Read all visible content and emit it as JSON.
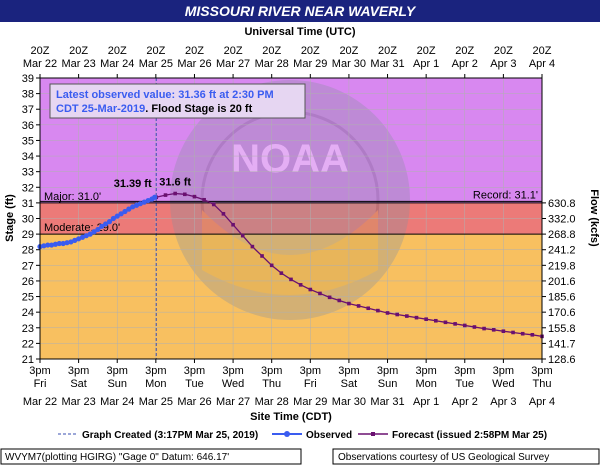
{
  "header": {
    "title": "MISSOURI RIVER NEAR WAVERLY",
    "top_axis_title": "Universal Time (UTC)"
  },
  "chart_data": {
    "type": "line",
    "title": "MISSOURI RIVER NEAR WAVERLY",
    "ylabel_left": "Stage (ft)",
    "ylabel_right": "Flow (kcfs)",
    "xlabel_bottom": "Site Time (CDT)",
    "xlabel_top": "Universal Time (UTC)",
    "ylim": [
      21,
      39
    ],
    "yticks": [
      21,
      22,
      23,
      24,
      25,
      26,
      27,
      28,
      29,
      30,
      31,
      32,
      33,
      34,
      35,
      36,
      37,
      38,
      39
    ],
    "x_unit": "days after 3pm Mar 22 (CDT)",
    "xlim": [
      0,
      13
    ],
    "bottom_ticks": [
      {
        "time": "3pm",
        "day": "Fri",
        "date": "Mar 22"
      },
      {
        "time": "3pm",
        "day": "Sat",
        "date": "Mar 23"
      },
      {
        "time": "3pm",
        "day": "Sun",
        "date": "Mar 24"
      },
      {
        "time": "3pm",
        "day": "Mon",
        "date": "Mar 25"
      },
      {
        "time": "3pm",
        "day": "Tue",
        "date": "Mar 26"
      },
      {
        "time": "3pm",
        "day": "Wed",
        "date": "Mar 27"
      },
      {
        "time": "3pm",
        "day": "Thu",
        "date": "Mar 28"
      },
      {
        "time": "3pm",
        "day": "Fri",
        "date": "Mar 29"
      },
      {
        "time": "3pm",
        "day": "Sat",
        "date": "Mar 30"
      },
      {
        "time": "3pm",
        "day": "Sun",
        "date": "Mar 31"
      },
      {
        "time": "3pm",
        "day": "Mon",
        "date": "Apr 1"
      },
      {
        "time": "3pm",
        "day": "Tue",
        "date": "Apr 2"
      },
      {
        "time": "3pm",
        "day": "Wed",
        "date": "Apr 3"
      },
      {
        "time": "3pm",
        "day": "Thu",
        "date": "Apr 4"
      }
    ],
    "top_ticks": [
      {
        "time": "20Z",
        "date": "Mar 22"
      },
      {
        "time": "20Z",
        "date": "Mar 23"
      },
      {
        "time": "20Z",
        "date": "Mar 24"
      },
      {
        "time": "20Z",
        "date": "Mar 25"
      },
      {
        "time": "20Z",
        "date": "Mar 26"
      },
      {
        "time": "20Z",
        "date": "Mar 27"
      },
      {
        "time": "20Z",
        "date": "Mar 28"
      },
      {
        "time": "20Z",
        "date": "Mar 29"
      },
      {
        "time": "20Z",
        "date": "Mar 30"
      },
      {
        "time": "20Z",
        "date": "Mar 31"
      },
      {
        "time": "20Z",
        "date": "Apr 1"
      },
      {
        "time": "20Z",
        "date": "Apr 2"
      },
      {
        "time": "20Z",
        "date": "Apr 3"
      },
      {
        "time": "20Z",
        "date": "Apr 4"
      }
    ],
    "flow_ticks": [
      {
        "stage": 31,
        "label": "630.8"
      },
      {
        "stage": 30,
        "label": "332.0"
      },
      {
        "stage": 29,
        "label": "268.8"
      },
      {
        "stage": 28,
        "label": "241.2"
      },
      {
        "stage": 27,
        "label": "219.8"
      },
      {
        "stage": 26,
        "label": "201.6"
      },
      {
        "stage": 25,
        "label": "185.6"
      },
      {
        "stage": 24,
        "label": "170.6"
      },
      {
        "stage": 23,
        "label": "155.8"
      },
      {
        "stage": 22,
        "label": "141.7"
      },
      {
        "stage": 21,
        "label": "128.6"
      }
    ],
    "bands": [
      {
        "name": "major",
        "from": 31,
        "to": 39,
        "color": "#d888f0"
      },
      {
        "name": "flood",
        "from": 29,
        "to": 31,
        "color": "#ec7a78"
      },
      {
        "name": "normal",
        "from": 21,
        "to": 29,
        "color": "#f8c060"
      }
    ],
    "thresholds": [
      {
        "label": "Major: 31.0'",
        "value": 31.0,
        "side": "left"
      },
      {
        "label": "Moderate: 29.0'",
        "value": 29.0,
        "side": "left"
      },
      {
        "label": "Record: 31.1'",
        "value": 31.1,
        "side": "right"
      }
    ],
    "graph_created_x": 3.01,
    "series": [
      {
        "name": "Observed",
        "color": "#3a5cf0",
        "points": [
          [
            0.0,
            28.2
          ],
          [
            0.1,
            28.25
          ],
          [
            0.2,
            28.3
          ],
          [
            0.3,
            28.3
          ],
          [
            0.4,
            28.35
          ],
          [
            0.5,
            28.4
          ],
          [
            0.6,
            28.4
          ],
          [
            0.7,
            28.45
          ],
          [
            0.8,
            28.5
          ],
          [
            0.9,
            28.6
          ],
          [
            1.0,
            28.7
          ],
          [
            1.1,
            28.8
          ],
          [
            1.2,
            28.9
          ],
          [
            1.3,
            29.0
          ],
          [
            1.4,
            29.15
          ],
          [
            1.5,
            29.3
          ],
          [
            1.6,
            29.5
          ],
          [
            1.7,
            29.65
          ],
          [
            1.8,
            29.8
          ],
          [
            1.9,
            30.0
          ],
          [
            2.0,
            30.15
          ],
          [
            2.1,
            30.3
          ],
          [
            2.2,
            30.45
          ],
          [
            2.3,
            30.6
          ],
          [
            2.4,
            30.75
          ],
          [
            2.5,
            30.85
          ],
          [
            2.6,
            30.95
          ],
          [
            2.7,
            31.05
          ],
          [
            2.8,
            31.15
          ],
          [
            2.9,
            31.25
          ],
          [
            2.97,
            31.36
          ]
        ],
        "peak_label": "31.39 ft"
      },
      {
        "name": "Forecast (issued 2:58PM Mar 25)",
        "color": "#6a1070",
        "points": [
          [
            3.01,
            31.36
          ],
          [
            3.25,
            31.5
          ],
          [
            3.5,
            31.6
          ],
          [
            3.75,
            31.55
          ],
          [
            4.0,
            31.4
          ],
          [
            4.25,
            31.2
          ],
          [
            4.5,
            30.9
          ],
          [
            4.75,
            30.3
          ],
          [
            5.0,
            29.6
          ],
          [
            5.25,
            28.9
          ],
          [
            5.5,
            28.2
          ],
          [
            5.75,
            27.6
          ],
          [
            6.0,
            27.0
          ],
          [
            6.25,
            26.5
          ],
          [
            6.5,
            26.1
          ],
          [
            6.75,
            25.75
          ],
          [
            7.0,
            25.45
          ],
          [
            7.25,
            25.2
          ],
          [
            7.5,
            24.95
          ],
          [
            7.75,
            24.75
          ],
          [
            8.0,
            24.55
          ],
          [
            8.25,
            24.4
          ],
          [
            8.5,
            24.25
          ],
          [
            8.75,
            24.1
          ],
          [
            9.0,
            23.95
          ],
          [
            9.25,
            23.85
          ],
          [
            9.5,
            23.75
          ],
          [
            9.75,
            23.65
          ],
          [
            10.0,
            23.55
          ],
          [
            10.25,
            23.45
          ],
          [
            10.5,
            23.35
          ],
          [
            10.75,
            23.25
          ],
          [
            11.0,
            23.15
          ],
          [
            11.25,
            23.05
          ],
          [
            11.5,
            22.95
          ],
          [
            11.75,
            22.87
          ],
          [
            12.0,
            22.78
          ],
          [
            12.25,
            22.7
          ],
          [
            12.5,
            22.62
          ],
          [
            12.75,
            22.55
          ],
          [
            13.0,
            22.45
          ]
        ],
        "peak_label": "31.6 ft"
      }
    ],
    "callout": {
      "line1": "Latest observed value: 31.36 ft at 2:30 PM",
      "line2_blue": "CDT 25-Mar-2019",
      "line2_black": ". Flood Stage is 20 ft"
    },
    "legend": {
      "graph_created": "Graph Created (3:17PM Mar 25, 2019)",
      "observed": "Observed",
      "forecast": "Forecast (issued 2:58PM Mar 25)"
    },
    "watermark_text": "NOAA",
    "footer": {
      "left": "WVYM7(plotting HGIRG) \"Gage 0\" Datum: 646.17'",
      "right": "Observations courtesy of US Geological Survey"
    }
  }
}
